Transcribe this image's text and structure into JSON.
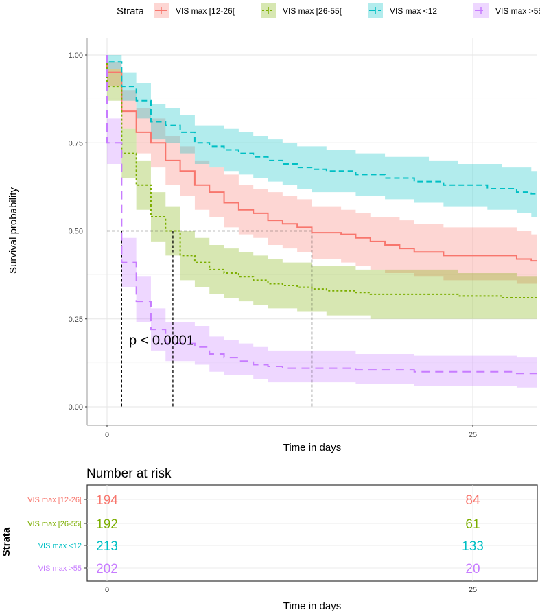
{
  "chart_data": [
    {
      "type": "line",
      "subtype": "kaplan-meier",
      "legend": {
        "title": "Strata",
        "placement": "top"
      },
      "xlabel": "Time in days",
      "ylabel": "Survival probability",
      "xlim": [
        0,
        29.4
      ],
      "ylim": [
        0,
        1
      ],
      "xticks": [
        "0",
        "25"
      ],
      "xtick_values": [
        0,
        25
      ],
      "yticks": [
        "0.00",
        "0.25",
        "0.50",
        "0.75",
        "1.00"
      ],
      "ytick_values": [
        0,
        0.25,
        0.5,
        0.75,
        1
      ],
      "grid": true,
      "annotation": "p < 0.0001",
      "annotation_pos": {
        "t": 1.5,
        "s": 0.19
      },
      "median_survival_line": 0.5,
      "times": [
        0,
        1,
        2,
        3,
        4,
        5,
        6,
        7,
        8,
        9,
        10,
        11,
        12,
        13,
        14,
        15,
        16,
        17,
        18,
        19,
        20,
        21,
        22,
        23,
        24,
        25,
        26,
        27,
        28,
        29
      ],
      "series": [
        {
          "name": "VIS max [12-26[",
          "color": "#F8766D",
          "dash": "",
          "median": 14,
          "survival": [
            0.95,
            0.84,
            0.78,
            0.75,
            0.7,
            0.67,
            0.63,
            0.61,
            0.58,
            0.56,
            0.55,
            0.53,
            0.52,
            0.51,
            0.495,
            0.495,
            0.49,
            0.48,
            0.47,
            0.46,
            0.45,
            0.44,
            0.44,
            0.43,
            0.43,
            0.43,
            0.43,
            0.43,
            0.42,
            0.415
          ],
          "lower": [
            0.91,
            0.79,
            0.72,
            0.68,
            0.63,
            0.6,
            0.56,
            0.54,
            0.51,
            0.49,
            0.48,
            0.46,
            0.45,
            0.44,
            0.42,
            0.42,
            0.41,
            0.4,
            0.39,
            0.38,
            0.38,
            0.37,
            0.37,
            0.36,
            0.36,
            0.36,
            0.36,
            0.36,
            0.35,
            0.35
          ],
          "upper": [
            0.98,
            0.9,
            0.85,
            0.82,
            0.77,
            0.74,
            0.7,
            0.68,
            0.66,
            0.63,
            0.62,
            0.61,
            0.6,
            0.59,
            0.57,
            0.57,
            0.56,
            0.55,
            0.54,
            0.54,
            0.53,
            0.52,
            0.52,
            0.51,
            0.51,
            0.51,
            0.51,
            0.51,
            0.5,
            0.49
          ]
        },
        {
          "name": "VIS max [26-55[",
          "color": "#7CAE00",
          "dash": "3,3",
          "median": 4.5,
          "survival": [
            0.91,
            0.72,
            0.63,
            0.54,
            0.5,
            0.43,
            0.41,
            0.39,
            0.38,
            0.37,
            0.36,
            0.35,
            0.345,
            0.34,
            0.335,
            0.33,
            0.33,
            0.325,
            0.32,
            0.32,
            0.32,
            0.32,
            0.32,
            0.32,
            0.315,
            0.315,
            0.315,
            0.31,
            0.31,
            0.31
          ],
          "lower": [
            0.87,
            0.65,
            0.56,
            0.47,
            0.43,
            0.36,
            0.34,
            0.32,
            0.31,
            0.3,
            0.29,
            0.28,
            0.28,
            0.27,
            0.27,
            0.26,
            0.26,
            0.26,
            0.25,
            0.25,
            0.25,
            0.25,
            0.25,
            0.25,
            0.25,
            0.25,
            0.25,
            0.25,
            0.25,
            0.25
          ],
          "upper": [
            0.96,
            0.79,
            0.7,
            0.61,
            0.57,
            0.5,
            0.48,
            0.46,
            0.45,
            0.44,
            0.43,
            0.42,
            0.41,
            0.41,
            0.4,
            0.4,
            0.4,
            0.39,
            0.39,
            0.39,
            0.39,
            0.39,
            0.39,
            0.39,
            0.38,
            0.38,
            0.38,
            0.38,
            0.37,
            0.37
          ]
        },
        {
          "name": "VIS max <12",
          "color": "#00BFC4",
          "dash": "8,5",
          "median": null,
          "survival": [
            0.98,
            0.91,
            0.87,
            0.81,
            0.8,
            0.78,
            0.75,
            0.74,
            0.73,
            0.72,
            0.71,
            0.7,
            0.69,
            0.68,
            0.675,
            0.67,
            0.67,
            0.66,
            0.66,
            0.65,
            0.65,
            0.64,
            0.64,
            0.63,
            0.63,
            0.63,
            0.62,
            0.62,
            0.61,
            0.605
          ],
          "lower": [
            0.96,
            0.87,
            0.82,
            0.76,
            0.75,
            0.72,
            0.69,
            0.68,
            0.67,
            0.66,
            0.65,
            0.64,
            0.63,
            0.62,
            0.61,
            0.61,
            0.61,
            0.6,
            0.6,
            0.59,
            0.59,
            0.58,
            0.58,
            0.57,
            0.57,
            0.57,
            0.56,
            0.56,
            0.55,
            0.54
          ],
          "upper": [
            1.0,
            0.95,
            0.92,
            0.86,
            0.85,
            0.83,
            0.8,
            0.8,
            0.79,
            0.78,
            0.77,
            0.76,
            0.75,
            0.74,
            0.74,
            0.73,
            0.73,
            0.72,
            0.72,
            0.71,
            0.71,
            0.71,
            0.7,
            0.7,
            0.69,
            0.69,
            0.69,
            0.68,
            0.68,
            0.67
          ]
        },
        {
          "name": "VIS max >55",
          "color": "#C77CFF",
          "dash": "12,8",
          "median": 1,
          "survival": [
            0.75,
            0.41,
            0.3,
            0.22,
            0.18,
            0.18,
            0.17,
            0.15,
            0.14,
            0.13,
            0.12,
            0.115,
            0.11,
            0.11,
            0.11,
            0.11,
            0.11,
            0.105,
            0.105,
            0.105,
            0.105,
            0.1,
            0.1,
            0.1,
            0.1,
            0.1,
            0.1,
            0.1,
            0.095,
            0.095
          ],
          "lower": [
            0.69,
            0.34,
            0.24,
            0.16,
            0.13,
            0.13,
            0.12,
            0.1,
            0.09,
            0.09,
            0.08,
            0.07,
            0.07,
            0.07,
            0.07,
            0.07,
            0.07,
            0.065,
            0.065,
            0.065,
            0.065,
            0.06,
            0.06,
            0.06,
            0.06,
            0.06,
            0.06,
            0.06,
            0.055,
            0.055
          ],
          "upper": [
            0.82,
            0.48,
            0.37,
            0.28,
            0.24,
            0.24,
            0.23,
            0.2,
            0.19,
            0.18,
            0.17,
            0.16,
            0.16,
            0.16,
            0.16,
            0.16,
            0.16,
            0.15,
            0.15,
            0.15,
            0.15,
            0.145,
            0.145,
            0.145,
            0.145,
            0.145,
            0.145,
            0.145,
            0.14,
            0.14
          ]
        }
      ]
    },
    {
      "type": "table",
      "title": "Number at risk",
      "ylabel": "Strata",
      "xlabel": "Time in days",
      "xticks": [
        "0",
        "25"
      ],
      "xtick_values": [
        0,
        25
      ],
      "rows": [
        {
          "name": "VIS max [12-26[",
          "color": "#F8766D",
          "values": [
            "194",
            "84"
          ]
        },
        {
          "name": "VIS max [26-55[",
          "color": "#7CAE00",
          "values": [
            "192",
            "61"
          ]
        },
        {
          "name": "VIS max <12",
          "color": "#00BFC4",
          "values": [
            "213",
            "133"
          ]
        },
        {
          "name": "VIS max >55",
          "color": "#C77CFF",
          "values": [
            "202",
            "20"
          ]
        }
      ]
    }
  ]
}
